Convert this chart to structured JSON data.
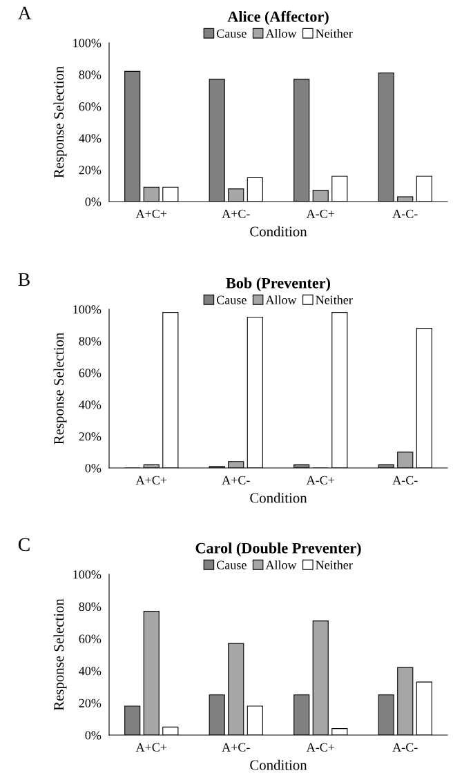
{
  "chart_data": [
    {
      "type": "bar",
      "title": "Alice (Affector)",
      "annotations": [
        "A"
      ],
      "xlabel": "Condition",
      "ylabel": "Response Selection",
      "categories": [
        "A+C+",
        "A+C-",
        "A-C+",
        "A-C-"
      ],
      "series": [
        {
          "name": "Cause",
          "color": "#808080",
          "values": [
            82,
            77,
            77,
            81
          ]
        },
        {
          "name": "Allow",
          "color": "#a6a6a6",
          "values": [
            9,
            8,
            7,
            3
          ]
        },
        {
          "name": "Neither",
          "color": "#ffffff",
          "values": [
            9,
            15,
            16,
            16
          ]
        }
      ],
      "ylim": [
        0,
        100
      ],
      "yticks": [
        {
          "value": 0,
          "label": "0%"
        },
        {
          "value": 20,
          "label": "20%"
        },
        {
          "value": 40,
          "label": "40%"
        },
        {
          "value": 60,
          "label": "60%"
        },
        {
          "value": 80,
          "label": "80%"
        },
        {
          "value": 100,
          "label": "100%"
        }
      ],
      "grid": false,
      "legend": "top"
    },
    {
      "type": "bar",
      "title": "Bob (Preventer)",
      "annotations": [
        "B"
      ],
      "xlabel": "Condition",
      "ylabel": "Response Selection",
      "categories": [
        "A+C+",
        "A+C-",
        "A-C+",
        "A-C-"
      ],
      "series": [
        {
          "name": "Cause",
          "color": "#808080",
          "values": [
            0,
            1,
            2,
            2
          ]
        },
        {
          "name": "Allow",
          "color": "#a6a6a6",
          "values": [
            2,
            4,
            0,
            10
          ]
        },
        {
          "name": "Neither",
          "color": "#ffffff",
          "values": [
            98,
            95,
            98,
            88
          ]
        }
      ],
      "ylim": [
        0,
        100
      ],
      "yticks": [
        {
          "value": 0,
          "label": "0%"
        },
        {
          "value": 20,
          "label": "20%"
        },
        {
          "value": 40,
          "label": "40%"
        },
        {
          "value": 60,
          "label": "60%"
        },
        {
          "value": 80,
          "label": "80%"
        },
        {
          "value": 100,
          "label": "100%"
        }
      ],
      "grid": false,
      "legend": "top"
    },
    {
      "type": "bar",
      "title": "Carol (Double Preventer)",
      "annotations": [
        "C"
      ],
      "xlabel": "Condition",
      "ylabel": "Response Selection",
      "categories": [
        "A+C+",
        "A+C-",
        "A-C+",
        "A-C-"
      ],
      "series": [
        {
          "name": "Cause",
          "color": "#808080",
          "values": [
            18,
            25,
            25,
            25
          ]
        },
        {
          "name": "Allow",
          "color": "#a6a6a6",
          "values": [
            77,
            57,
            71,
            42
          ]
        },
        {
          "name": "Neither",
          "color": "#ffffff",
          "values": [
            5,
            18,
            4,
            33
          ]
        }
      ],
      "ylim": [
        0,
        100
      ],
      "yticks": [
        {
          "value": 0,
          "label": "0%"
        },
        {
          "value": 20,
          "label": "20%"
        },
        {
          "value": 40,
          "label": "40%"
        },
        {
          "value": 60,
          "label": "60%"
        },
        {
          "value": 80,
          "label": "80%"
        },
        {
          "value": 100,
          "label": "100%"
        }
      ],
      "grid": false,
      "legend": "top"
    }
  ]
}
